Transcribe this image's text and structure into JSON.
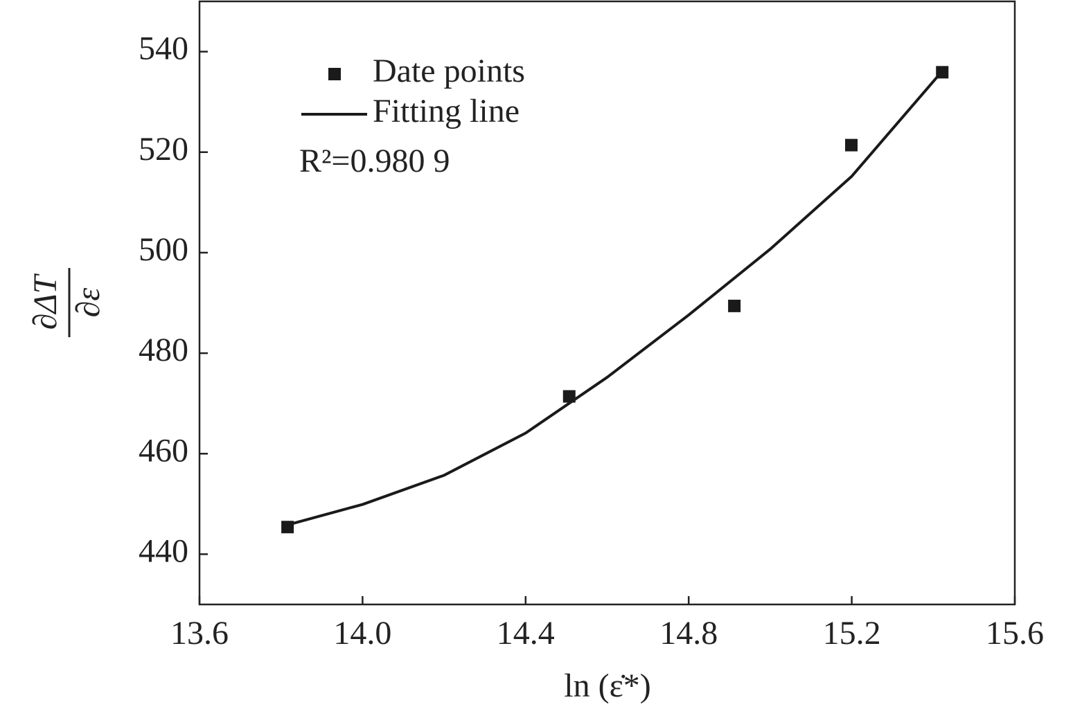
{
  "chart_data": {
    "type": "scatter",
    "x_label": "ln (ε̇*)",
    "y_label": {
      "numerator": "∂ΔT",
      "denominator": "∂ε"
    },
    "annotation": "R²=0.980 9",
    "xlim": [
      13.6,
      15.6
    ],
    "xticks": [
      13.6,
      {
        "value": 14.0,
        "label": "14.0"
      },
      14.4,
      14.8,
      15.2,
      15.6
    ],
    "ylim": [
      430,
      550
    ],
    "yticks": [
      440,
      460,
      480,
      500,
      520,
      540
    ],
    "legend": "top-left",
    "series": [
      {
        "name": "Date points",
        "color": "#1a1a1a",
        "marker": "square",
        "x": [
          13.816,
          14.507,
          14.912,
          15.199,
          15.422
        ],
        "values": [
          445.4,
          471.4,
          489.4,
          521.4,
          535.9
        ]
      },
      {
        "name": "Fitting line",
        "color": "#1a1a1a",
        "marker": "line",
        "x": [
          13.81,
          14.0,
          14.2,
          14.4,
          14.6,
          14.8,
          15.0,
          15.2,
          15.41
        ],
        "values": [
          445.7,
          449.9,
          455.7,
          464.1,
          475.2,
          487.6,
          500.7,
          515.2,
          535.0
        ]
      }
    ]
  }
}
